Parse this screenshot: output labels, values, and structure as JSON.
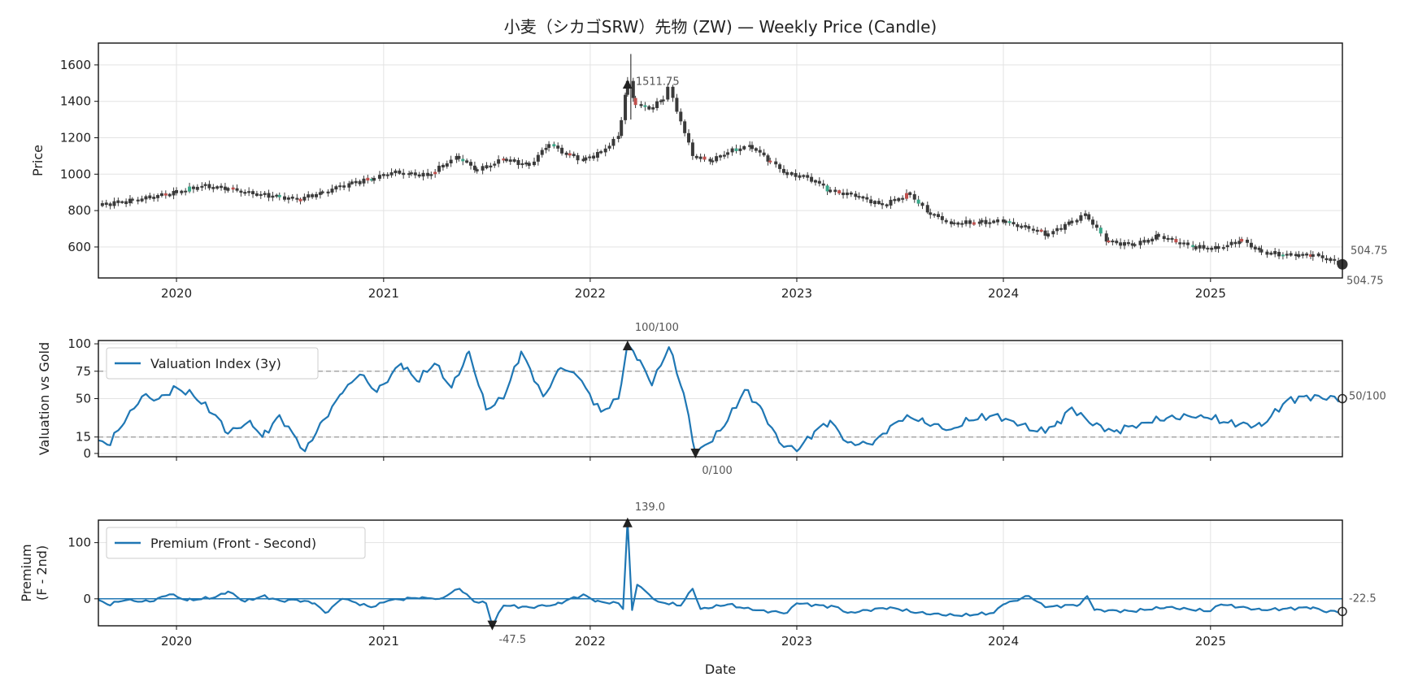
{
  "chart_data": [
    {
      "type": "candlestick",
      "title": "小麦（シカゴSRW）先物 (ZW) — Weekly Price (Candle)",
      "ylabel": "Price",
      "ylim": [
        430,
        1720
      ],
      "x_range": [
        "2019-08-16",
        "2025-08-22"
      ],
      "yticks": [
        600,
        800,
        1000,
        1200,
        1400,
        1600
      ],
      "xtick_labels": [
        "2020",
        "2021",
        "2022",
        "2023",
        "2024",
        "2025"
      ],
      "grid": true,
      "anchors": [
        [
          "2019-08-16",
          830
        ],
        [
          "2019-10-15",
          855
        ],
        [
          "2020-01-01",
          900
        ],
        [
          "2020-02-15",
          935
        ],
        [
          "2020-04-01",
          920
        ],
        [
          "2020-05-15",
          890
        ],
        [
          "2020-07-01",
          878
        ],
        [
          "2020-08-01",
          860
        ],
        [
          "2020-09-15",
          900
        ],
        [
          "2020-11-01",
          950
        ],
        [
          "2020-12-15",
          975
        ],
        [
          "2021-01-15",
          1010
        ],
        [
          "2021-02-15",
          1005
        ],
        [
          "2021-03-20",
          990
        ],
        [
          "2021-05-10",
          1100
        ],
        [
          "2021-06-15",
          1020
        ],
        [
          "2021-08-01",
          1080
        ],
        [
          "2021-09-15",
          1050
        ],
        [
          "2021-10-20",
          1165
        ],
        [
          "2021-11-20",
          1110
        ],
        [
          "2021-12-20",
          1080
        ],
        [
          "2022-01-20",
          1120
        ],
        [
          "2022-02-20",
          1210
        ],
        [
          "2022-03-08",
          1511.75
        ],
        [
          "2022-03-22",
          1380
        ],
        [
          "2022-04-15",
          1360
        ],
        [
          "2022-05-10",
          1410
        ],
        [
          "2022-05-18",
          1480
        ],
        [
          "2022-06-10",
          1290
        ],
        [
          "2022-07-01",
          1100
        ],
        [
          "2022-08-01",
          1070
        ],
        [
          "2022-09-01",
          1120
        ],
        [
          "2022-10-10",
          1160
        ],
        [
          "2022-11-15",
          1070
        ],
        [
          "2022-12-15",
          1000
        ],
        [
          "2023-01-20",
          985
        ],
        [
          "2023-03-01",
          910
        ],
        [
          "2023-04-15",
          880
        ],
        [
          "2023-06-01",
          830
        ],
        [
          "2023-07-20",
          890
        ],
        [
          "2023-08-20",
          790
        ],
        [
          "2023-10-01",
          730
        ],
        [
          "2023-11-20",
          735
        ],
        [
          "2024-01-01",
          740
        ],
        [
          "2024-02-15",
          700
        ],
        [
          "2024-03-20",
          670
        ],
        [
          "2024-05-01",
          740
        ],
        [
          "2024-05-25",
          780
        ],
        [
          "2024-07-01",
          630
        ],
        [
          "2024-08-20",
          610
        ],
        [
          "2024-10-01",
          660
        ],
        [
          "2024-12-01",
          600
        ],
        [
          "2025-01-15",
          590
        ],
        [
          "2025-02-25",
          640
        ],
        [
          "2025-04-01",
          570
        ],
        [
          "2025-06-01",
          550
        ],
        [
          "2025-07-01",
          560
        ],
        [
          "2025-08-22",
          504.75
        ]
      ],
      "peak": {
        "date": "2022-03-08",
        "value": 1511.75,
        "label": "1511.75"
      },
      "last": {
        "date": "2025-08-22",
        "value": 504.75,
        "label": "504.75",
        "label_low": "504.75"
      },
      "colors": {
        "body": "#3a3a3a",
        "up_accent": "#3aa88a",
        "down_accent": "#c0504d"
      }
    },
    {
      "type": "line",
      "ylabel": "Valuation vs Gold",
      "ylim": [
        -3,
        103
      ],
      "yticks": [
        0,
        15,
        50,
        75,
        100
      ],
      "reference_lines": [
        75,
        15
      ],
      "legend": "top-left",
      "series": [
        {
          "name": "Valuation Index (3y)",
          "color": "#1f77b4"
        }
      ],
      "anchors": [
        [
          "2019-08-16",
          12
        ],
        [
          "2019-09-01",
          8
        ],
        [
          "2019-10-01",
          28
        ],
        [
          "2019-11-01",
          52
        ],
        [
          "2019-12-01",
          50
        ],
        [
          "2020-01-01",
          60
        ],
        [
          "2020-02-01",
          52
        ],
        [
          "2020-03-10",
          35
        ],
        [
          "2020-04-01",
          18
        ],
        [
          "2020-05-10",
          30
        ],
        [
          "2020-06-01",
          15
        ],
        [
          "2020-07-01",
          35
        ],
        [
          "2020-07-25",
          18
        ],
        [
          "2020-08-15",
          2
        ],
        [
          "2020-09-15",
          30
        ],
        [
          "2020-10-20",
          55
        ],
        [
          "2020-11-20",
          72
        ],
        [
          "2020-12-20",
          56
        ],
        [
          "2021-02-01",
          82
        ],
        [
          "2021-03-01",
          66
        ],
        [
          "2021-04-01",
          82
        ],
        [
          "2021-05-01",
          60
        ],
        [
          "2021-06-01",
          93
        ],
        [
          "2021-07-01",
          40
        ],
        [
          "2021-08-01",
          50
        ],
        [
          "2021-09-01",
          93
        ],
        [
          "2021-10-10",
          52
        ],
        [
          "2021-11-10",
          78
        ],
        [
          "2021-12-10",
          70
        ],
        [
          "2022-01-20",
          38
        ],
        [
          "2022-02-20",
          50
        ],
        [
          "2022-03-08",
          100
        ],
        [
          "2022-03-30",
          85
        ],
        [
          "2022-04-20",
          62
        ],
        [
          "2022-05-20",
          97
        ],
        [
          "2022-06-15",
          55
        ],
        [
          "2022-07-06",
          0
        ],
        [
          "2022-08-01",
          10
        ],
        [
          "2022-09-01",
          30
        ],
        [
          "2022-10-01",
          58
        ],
        [
          "2022-11-01",
          40
        ],
        [
          "2022-12-01",
          10
        ],
        [
          "2023-01-01",
          2
        ],
        [
          "2023-02-01",
          20
        ],
        [
          "2023-03-01",
          30
        ],
        [
          "2023-04-01",
          10
        ],
        [
          "2023-05-15",
          8
        ],
        [
          "2023-06-15",
          25
        ],
        [
          "2023-07-15",
          35
        ],
        [
          "2023-08-15",
          28
        ],
        [
          "2023-10-01",
          22
        ],
        [
          "2023-11-01",
          30
        ],
        [
          "2023-12-15",
          35
        ],
        [
          "2024-01-15",
          30
        ],
        [
          "2024-03-01",
          20
        ],
        [
          "2024-04-01",
          25
        ],
        [
          "2024-05-01",
          42
        ],
        [
          "2024-06-01",
          28
        ],
        [
          "2024-07-15",
          20
        ],
        [
          "2024-09-01",
          28
        ],
        [
          "2024-10-15",
          32
        ],
        [
          "2024-12-15",
          35
        ],
        [
          "2025-02-01",
          28
        ],
        [
          "2025-04-01",
          25
        ],
        [
          "2025-05-15",
          48
        ],
        [
          "2025-06-15",
          52
        ],
        [
          "2025-08-22",
          50
        ]
      ],
      "max": {
        "date": "2022-03-08",
        "value": 100,
        "label": "100/100"
      },
      "min": {
        "date": "2022-07-06",
        "value": 0,
        "label": "0/100"
      },
      "last": {
        "date": "2025-08-22",
        "value": 50,
        "label": "50/100"
      }
    },
    {
      "type": "line",
      "ylabel": "Premium\n(F - 2nd)",
      "ylabel_lines": [
        "Premium",
        "(F - 2nd)"
      ],
      "xlabel": "Date",
      "ylim": [
        -48,
        140
      ],
      "yticks": [
        0,
        100
      ],
      "xtick_labels": [
        "2020",
        "2021",
        "2022",
        "2023",
        "2024",
        "2025"
      ],
      "reference_lines": [
        0
      ],
      "legend": "top-left",
      "series": [
        {
          "name": "Premium (Front - Second)",
          "color": "#1f77b4"
        }
      ],
      "anchors": [
        [
          "2019-08-16",
          -2
        ],
        [
          "2019-09-01",
          -10
        ],
        [
          "2019-10-01",
          -3
        ],
        [
          "2019-11-15",
          -5
        ],
        [
          "2019-12-20",
          8
        ],
        [
          "2020-01-20",
          -3
        ],
        [
          "2020-03-10",
          3
        ],
        [
          "2020-04-01",
          13
        ],
        [
          "2020-05-01",
          -5
        ],
        [
          "2020-06-01",
          5
        ],
        [
          "2020-07-01",
          -3
        ],
        [
          "2020-08-01",
          -2
        ],
        [
          "2020-09-01",
          -8
        ],
        [
          "2020-09-20",
          -25
        ],
        [
          "2020-10-20",
          0
        ],
        [
          "2020-12-10",
          -15
        ],
        [
          "2021-01-10",
          -3
        ],
        [
          "2021-03-10",
          3
        ],
        [
          "2021-04-10",
          0
        ],
        [
          "2021-05-15",
          18
        ],
        [
          "2021-06-10",
          -5
        ],
        [
          "2021-07-01",
          -8
        ],
        [
          "2021-07-12",
          -47.5
        ],
        [
          "2021-08-01",
          -12
        ],
        [
          "2021-09-15",
          -15
        ],
        [
          "2021-11-01",
          -10
        ],
        [
          "2021-12-20",
          8
        ],
        [
          "2022-01-10",
          -5
        ],
        [
          "2022-02-20",
          -8
        ],
        [
          "2022-02-28",
          -18
        ],
        [
          "2022-03-08",
          139
        ],
        [
          "2022-03-16",
          -20
        ],
        [
          "2022-03-25",
          25
        ],
        [
          "2022-05-01",
          -5
        ],
        [
          "2022-06-10",
          -12
        ],
        [
          "2022-07-01",
          18
        ],
        [
          "2022-07-15",
          -18
        ],
        [
          "2022-09-01",
          -10
        ],
        [
          "2022-10-15",
          -20
        ],
        [
          "2022-12-15",
          -25
        ],
        [
          "2023-01-01",
          -8
        ],
        [
          "2023-03-15",
          -15
        ],
        [
          "2023-04-01",
          -25
        ],
        [
          "2023-06-15",
          -15
        ],
        [
          "2023-08-01",
          -25
        ],
        [
          "2023-10-15",
          -30
        ],
        [
          "2023-12-15",
          -25
        ],
        [
          "2024-01-01",
          -10
        ],
        [
          "2024-02-15",
          5
        ],
        [
          "2024-03-15",
          -15
        ],
        [
          "2024-05-15",
          -10
        ],
        [
          "2024-05-28",
          5
        ],
        [
          "2024-06-10",
          -20
        ],
        [
          "2024-08-15",
          -22
        ],
        [
          "2024-10-15",
          -15
        ],
        [
          "2025-01-01",
          -22
        ],
        [
          "2025-01-20",
          -10
        ],
        [
          "2025-04-01",
          -20
        ],
        [
          "2025-07-01",
          -15
        ],
        [
          "2025-07-20",
          -22.5
        ],
        [
          "2025-08-22",
          -22.5
        ]
      ],
      "max": {
        "date": "2022-03-08",
        "value": 139,
        "label": "139.0"
      },
      "min": {
        "date": "2021-07-12",
        "value": -47.5,
        "label": "-47.5"
      },
      "last": {
        "date": "2025-08-22",
        "value": -22.5,
        "label": "-22.5"
      }
    }
  ]
}
